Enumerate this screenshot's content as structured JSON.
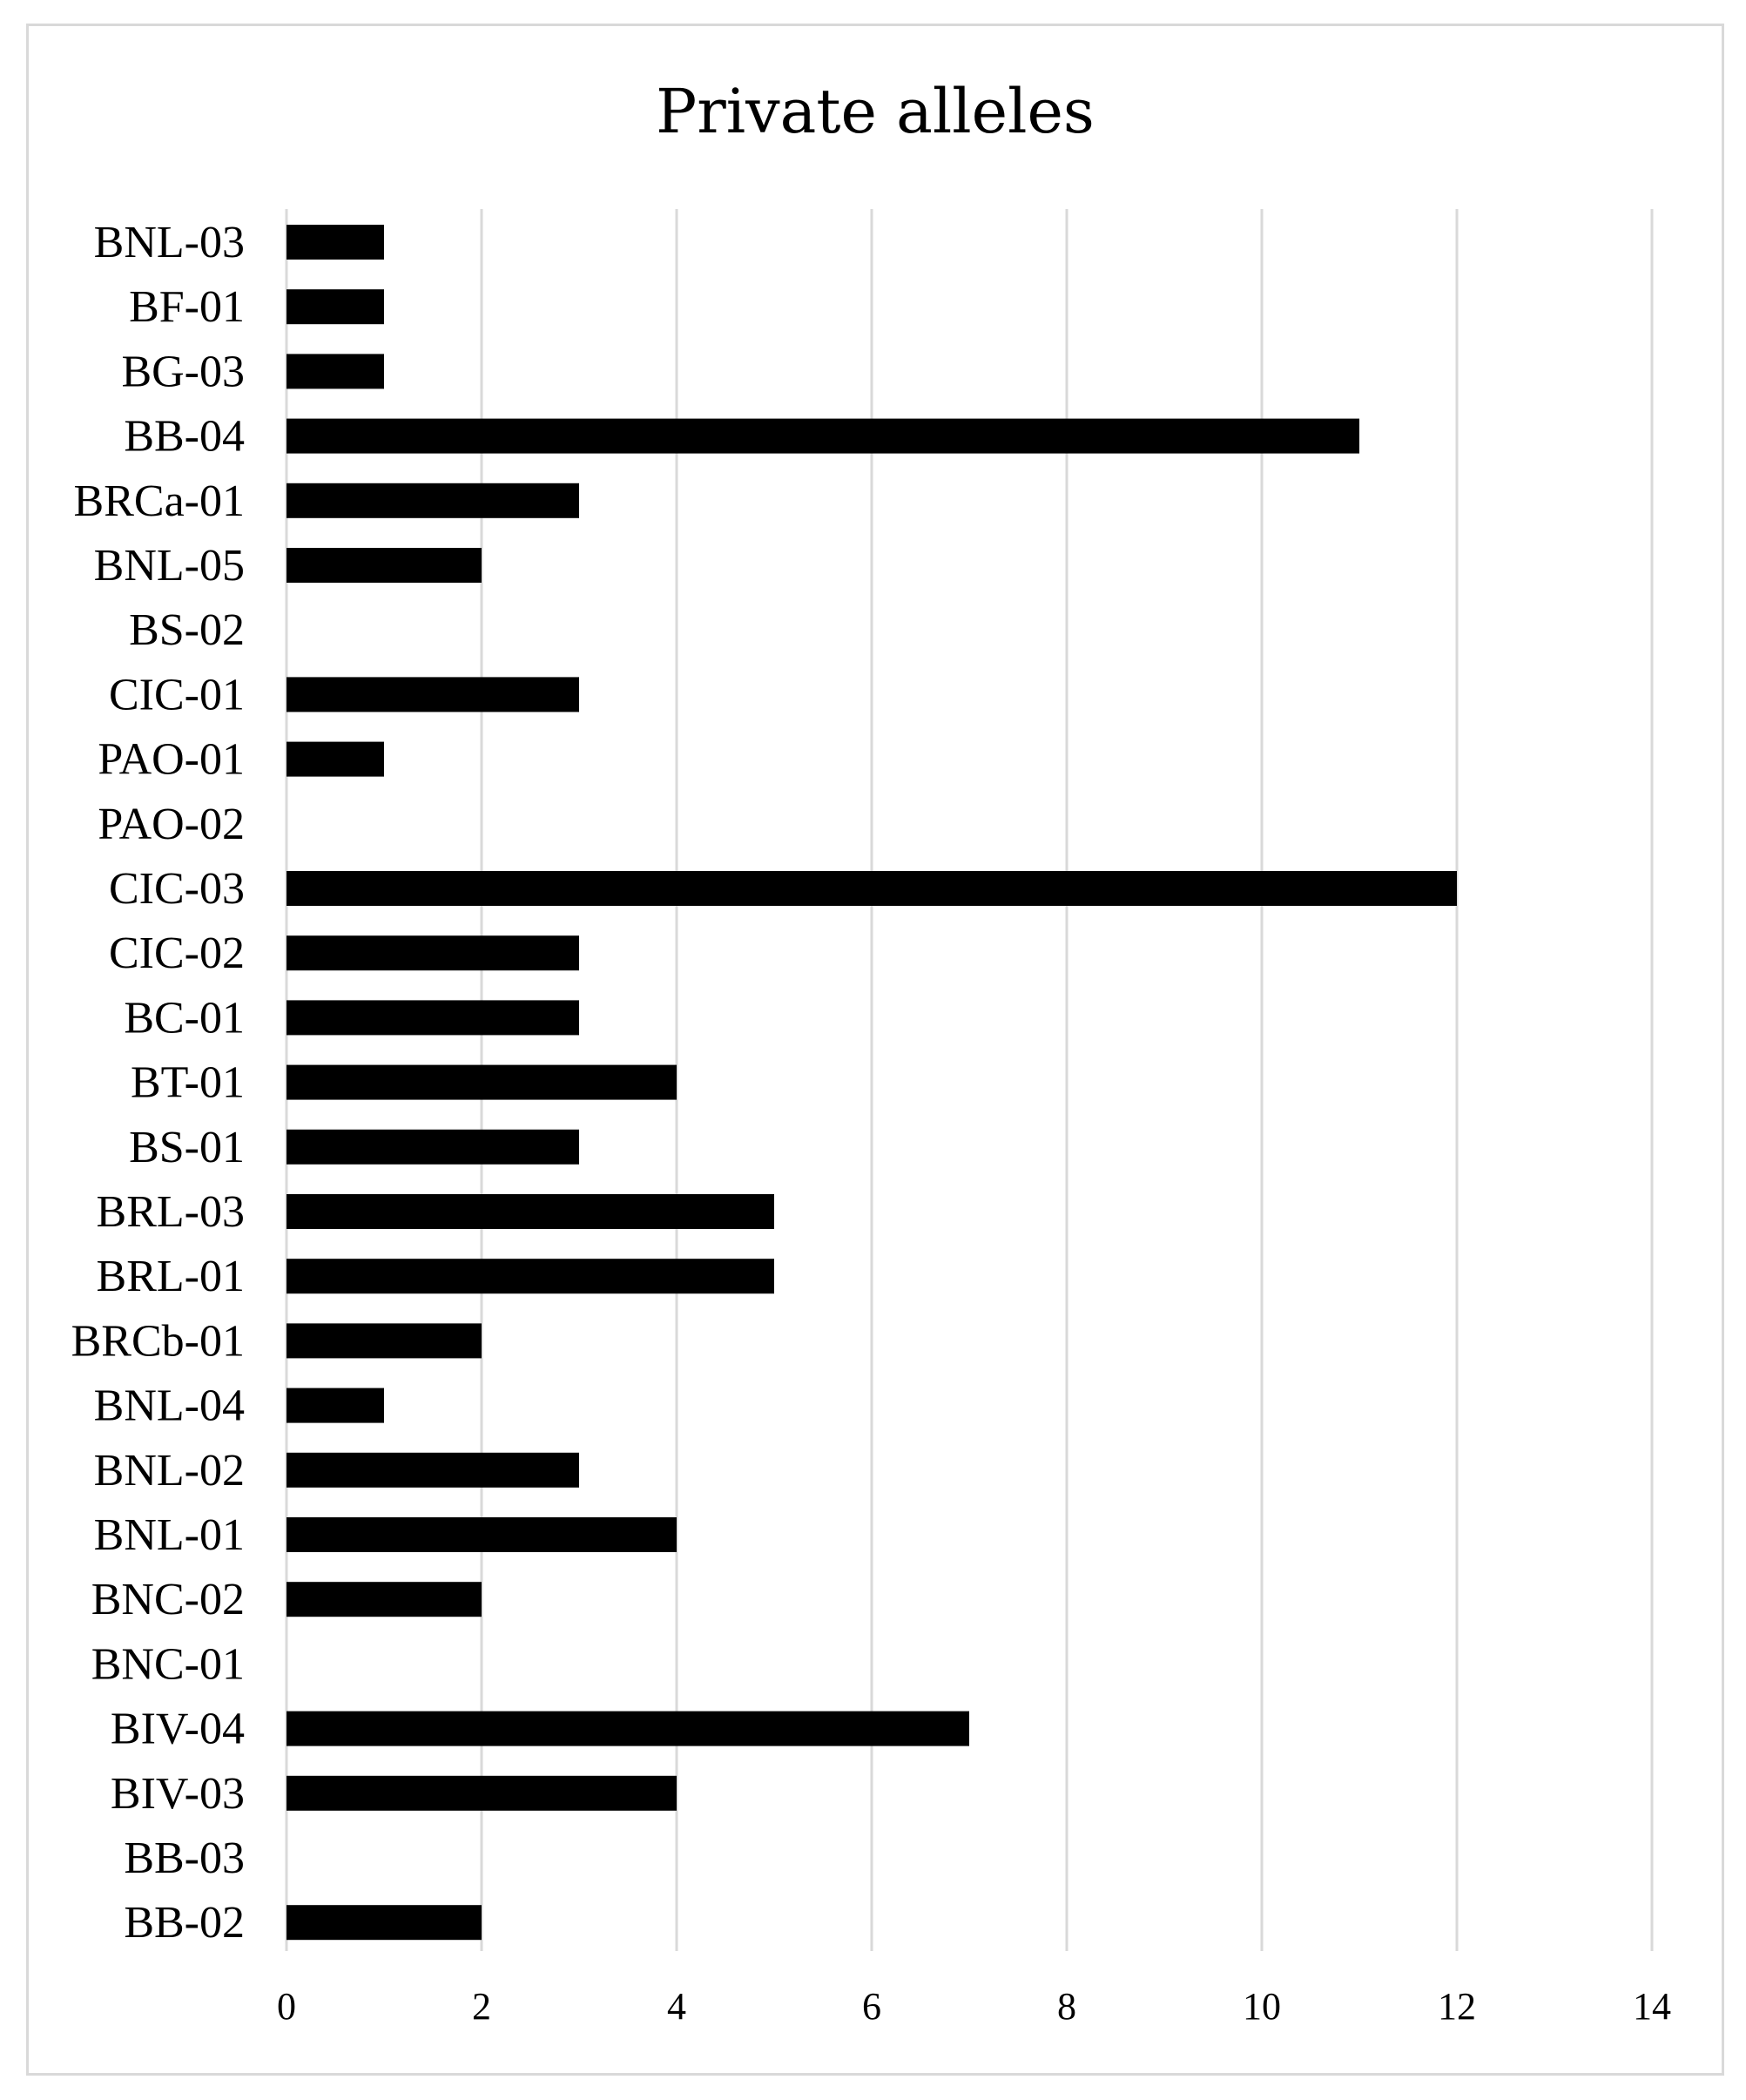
{
  "chart_data": {
    "type": "bar",
    "orientation": "horizontal",
    "title": "Private alleles",
    "xlabel": "",
    "ylabel": "",
    "categories": [
      "BNL-03",
      "BF-01",
      "BG-03",
      "BB-04",
      "BRCa-01",
      "BNL-05",
      "BS-02",
      "CIC-01",
      "PAO-01",
      "PAO-02",
      "CIC-03",
      "CIC-02",
      "BC-01",
      "BT-01",
      "BS-01",
      "BRL-03",
      "BRL-01",
      "BRCb-01",
      "BNL-04",
      "BNL-02",
      "BNL-01",
      "BNC-02",
      "BNC-01",
      "BIV-04",
      "BIV-03",
      "BB-03",
      "BB-02"
    ],
    "values": [
      1,
      1,
      1,
      11,
      3,
      2,
      0,
      3,
      1,
      0,
      12,
      3,
      3,
      4,
      3,
      5,
      5,
      2,
      1,
      3,
      4,
      2,
      0,
      7,
      4,
      0,
      2
    ],
    "xlim": [
      0,
      14
    ],
    "xticks": [
      "0",
      "2",
      "4",
      "6",
      "8",
      "10",
      "12",
      "14"
    ],
    "grid": "vertical",
    "legend": "none",
    "bar_color": "#000000",
    "grid_color": "#d9d9d9"
  }
}
